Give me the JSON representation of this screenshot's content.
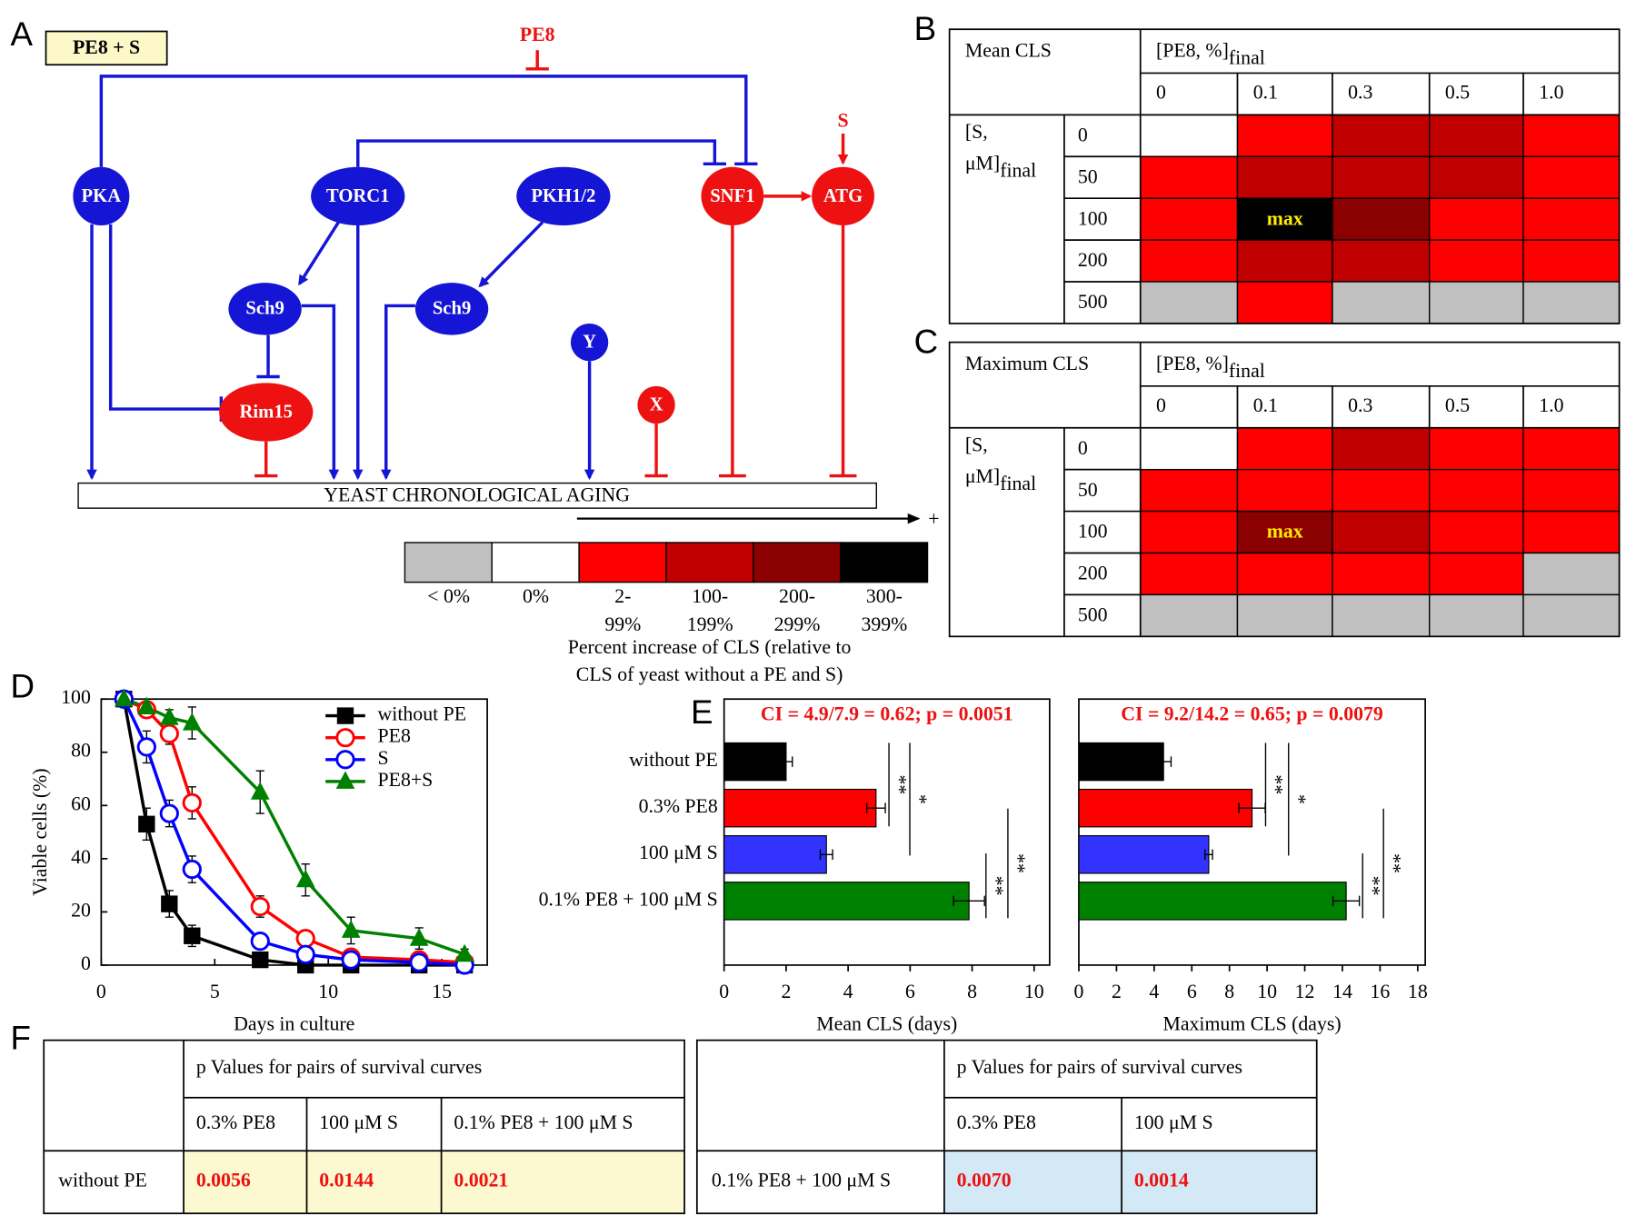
{
  "panel_labels": [
    "A",
    "B",
    "C",
    "D",
    "E",
    "F"
  ],
  "diagram": {
    "box_label": "PE8 + S",
    "nodes": [
      "PKA",
      "TORC1",
      "PKH1/2",
      "SNF1",
      "ATG",
      "Sch9",
      "Sch9",
      "Rim15",
      "Y",
      "X"
    ],
    "effectors": [
      "PE8",
      "S"
    ],
    "aging_label": "YEAST CHRONOLOGICAL AGING",
    "arrow_label": "+"
  },
  "legend": {
    "items": [
      {
        "label": [
          "< 0%"
        ],
        "color": "#c0c0c0"
      },
      {
        "label": [
          "0%"
        ],
        "color": "#ffffff"
      },
      {
        "label": [
          "2-",
          "99%"
        ],
        "color": "#ff0000"
      },
      {
        "label": [
          "100-",
          "199%"
        ],
        "color": "#c00000"
      },
      {
        "label": [
          "200-",
          "299%"
        ],
        "color": "#8b0000"
      },
      {
        "label": [
          "300-",
          "399%"
        ],
        "color": "#000000"
      }
    ],
    "caption": [
      "Percent increase of CLS (relative to",
      "CLS of yeast without a PE and S)"
    ]
  },
  "heatmaps": [
    {
      "title": "Mean CLS",
      "col_header": "[PE8, %]",
      "col_header_sub": "final",
      "columns": [
        "0",
        "0.1",
        "0.3",
        "0.5",
        "1.0"
      ],
      "row_header": [
        "[S,",
        "μM]"
      ],
      "row_header_sub": "final",
      "rows": [
        "0",
        "50",
        "100",
        "200",
        "500"
      ],
      "cells": [
        [
          "#ffffff",
          "#ff0000",
          "#c00000",
          "#c00000",
          "#ff0000"
        ],
        [
          "#ff0000",
          "#c00000",
          "#c00000",
          "#c00000",
          "#ff0000"
        ],
        [
          "#ff0000",
          {
            "color": "#000000",
            "label": "max"
          },
          "#8b0000",
          "#ff0000",
          "#ff0000"
        ],
        [
          "#ff0000",
          "#c00000",
          "#c00000",
          "#ff0000",
          "#ff0000"
        ],
        [
          "#c0c0c0",
          "#ff0000",
          "#c0c0c0",
          "#c0c0c0",
          "#c0c0c0"
        ]
      ]
    },
    {
      "title": "Maximum CLS",
      "col_header": "[PE8, %]",
      "col_header_sub": "final",
      "columns": [
        "0",
        "0.1",
        "0.3",
        "0.5",
        "1.0"
      ],
      "row_header": [
        "[S,",
        "μM]"
      ],
      "row_header_sub": "final",
      "rows": [
        "0",
        "50",
        "100",
        "200",
        "500"
      ],
      "cells": [
        [
          "#ffffff",
          "#ff0000",
          "#c00000",
          "#ff0000",
          "#ff0000"
        ],
        [
          "#ff0000",
          "#ff0000",
          "#ff0000",
          "#ff0000",
          "#ff0000"
        ],
        [
          "#ff0000",
          {
            "color": "#8b0000",
            "label": "max"
          },
          "#c00000",
          "#ff0000",
          "#ff0000"
        ],
        [
          "#ff0000",
          "#ff0000",
          "#ff0000",
          "#ff0000",
          "#c0c0c0"
        ],
        [
          "#c0c0c0",
          "#c0c0c0",
          "#c0c0c0",
          "#c0c0c0",
          "#c0c0c0"
        ]
      ]
    }
  ],
  "chart_data": [
    {
      "type": "line",
      "x_label": "Days in culture",
      "y_label": "Viable cells (%)",
      "x": [
        1,
        2,
        3,
        4,
        7,
        9,
        11,
        14,
        16
      ],
      "xlim": [
        0,
        17
      ],
      "xticks": [
        0,
        5,
        10,
        15
      ],
      "ylim": [
        0,
        100
      ],
      "yticks": [
        0,
        20,
        40,
        60,
        80,
        100
      ],
      "legend": "upper right",
      "series": [
        {
          "name": "without PE",
          "color": "#000000",
          "marker": "square",
          "values": [
            100,
            53,
            23,
            11,
            2,
            0,
            0,
            0,
            0
          ],
          "errors": [
            0,
            6,
            5,
            4,
            1,
            1,
            1,
            0,
            0
          ]
        },
        {
          "name": "PE8",
          "color": "#ff0000",
          "marker": "circle-open",
          "values": [
            100,
            96,
            87,
            61,
            22,
            10,
            3,
            2,
            1
          ],
          "errors": [
            0,
            3,
            4,
            6,
            4,
            3,
            1,
            1,
            1
          ]
        },
        {
          "name": "S",
          "color": "#0000ff",
          "marker": "circle-open",
          "values": [
            100,
            82,
            57,
            36,
            9,
            4,
            2,
            1,
            0
          ],
          "errors": [
            0,
            6,
            5,
            5,
            3,
            2,
            1,
            1,
            1
          ]
        },
        {
          "name": "PE8+S",
          "color": "#008000",
          "marker": "triangle",
          "values": [
            100,
            97,
            93,
            91,
            65,
            32,
            13,
            10,
            4
          ],
          "errors": [
            0,
            3,
            3,
            6,
            8,
            6,
            5,
            4,
            2
          ]
        }
      ]
    },
    {
      "type": "barh",
      "title": "CI = 4.9/7.9 = 0.62; p = 0.0051",
      "x_label": "Mean CLS (days)",
      "categories": [
        "without PE",
        "0.3% PE8",
        "100 μM S",
        "0.1% PE8 + 100 μM S"
      ],
      "colors": [
        "#000000",
        "#ff0000",
        "#3333ff",
        "#008000"
      ],
      "values": [
        2.0,
        4.9,
        3.3,
        7.9
      ],
      "errors": [
        0.2,
        0.3,
        0.2,
        0.5
      ],
      "xlim": [
        0,
        10.5
      ],
      "xticks": [
        0,
        2,
        4,
        6,
        8,
        10
      ],
      "significance_labels": [
        "**",
        "*",
        "**",
        "**"
      ]
    },
    {
      "type": "barh",
      "title": "CI = 9.2/14.2 = 0.65; p = 0.0079",
      "x_label": "Maximum CLS (days)",
      "categories": [
        null,
        null,
        null,
        null
      ],
      "colors": [
        "#000000",
        "#ff0000",
        "#3333ff",
        "#008000"
      ],
      "values": [
        4.5,
        9.2,
        6.9,
        14.2
      ],
      "errors": [
        0.4,
        0.7,
        0.2,
        0.7
      ],
      "xlim": [
        0,
        18.4
      ],
      "xticks": [
        0,
        2,
        4,
        6,
        8,
        10,
        12,
        14,
        16,
        18
      ],
      "significance_labels": [
        "**",
        "*",
        "**",
        "**"
      ]
    }
  ],
  "tables": [
    {
      "header": "p Values for pairs of survival curves",
      "columns": [
        "0.3% PE8",
        "100 μM S",
        "0.1% PE8 + 100 μM S"
      ],
      "row_label": "without PE",
      "values": [
        "0.0056",
        "0.0144",
        "0.0021"
      ],
      "cell_color": "#fcf8cf"
    },
    {
      "header": "p Values for pairs of survival curves",
      "columns": [
        "0.3% PE8",
        "100 μM S"
      ],
      "row_label": "0.1% PE8 + 100 μM S",
      "values": [
        "0.0070",
        "0.0014"
      ],
      "cell_color": "#d3e9f5"
    }
  ]
}
